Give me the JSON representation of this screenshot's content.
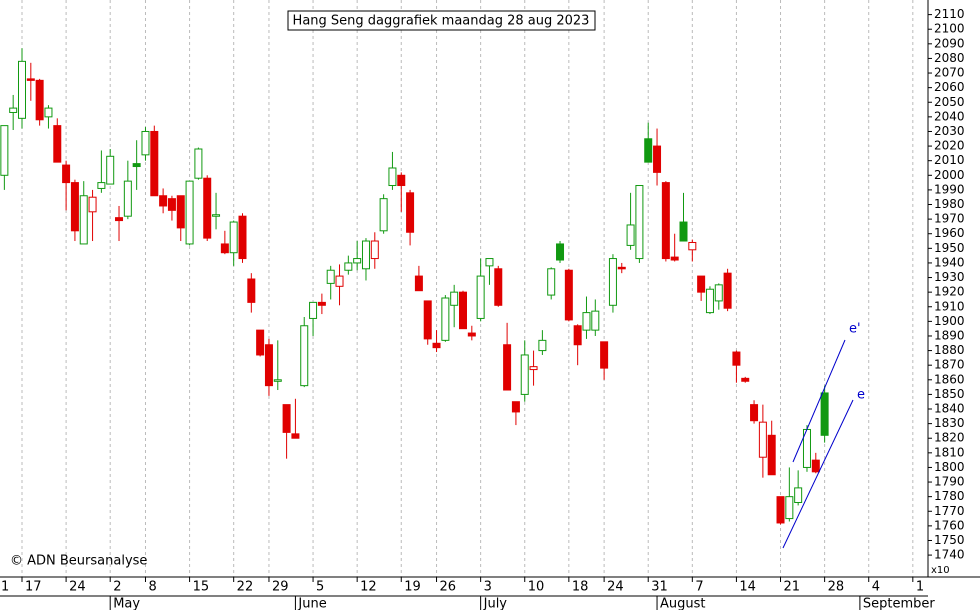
{
  "chart_data": {
    "type": "candlestick",
    "title": "Hang Seng daggrafiek maandag 28 aug 2023",
    "copyright": "© ADN Beursanalyse",
    "y_multiplier_label": "x10",
    "annotations": [
      "e'",
      "e"
    ],
    "up_color": "#119911",
    "down_color": "#e00000",
    "annotation_color": "#0000cc",
    "grid": true,
    "ylim": [
      1725,
      2120
    ],
    "yticks": [
      1740,
      1750,
      1760,
      1770,
      1780,
      1790,
      1800,
      1810,
      1820,
      1830,
      1840,
      1850,
      1860,
      1870,
      1880,
      1890,
      1900,
      1910,
      1920,
      1930,
      1940,
      1950,
      1960,
      1970,
      1980,
      1990,
      2000,
      2010,
      2020,
      2030,
      2040,
      2050,
      2060,
      2070,
      2080,
      2090,
      2100,
      2110
    ],
    "categories": [
      "1",
      null,
      null,
      null,
      "17",
      null,
      null,
      null,
      null,
      "24",
      null,
      null,
      null,
      null,
      "2",
      null,
      null,
      null,
      "8",
      null,
      null,
      null,
      null,
      "15",
      null,
      null,
      null,
      null,
      "22",
      null,
      null,
      null,
      "29",
      null,
      null,
      null,
      null,
      "5",
      null,
      null,
      null,
      null,
      "12",
      null,
      null,
      null,
      null,
      "19",
      null,
      null,
      null,
      "26",
      null,
      null,
      null,
      null,
      "3",
      null,
      null,
      null,
      null,
      "10",
      null,
      null,
      null,
      null,
      "18",
      null,
      null,
      null,
      "24",
      null,
      null,
      null,
      null,
      "31",
      null,
      null,
      null,
      null,
      "7",
      null,
      null,
      null,
      null,
      "14",
      null,
      null,
      null,
      null,
      "21",
      null,
      null,
      null,
      null,
      "28",
      null,
      null,
      null,
      null,
      "4",
      null,
      null,
      null,
      null,
      "1"
    ],
    "months": [
      null,
      null,
      null,
      null,
      null,
      null,
      null,
      null,
      null,
      null,
      null,
      null,
      null,
      null,
      "May",
      null,
      null,
      null,
      null,
      null,
      null,
      null,
      null,
      null,
      null,
      null,
      null,
      null,
      null,
      null,
      null,
      null,
      null,
      null,
      null,
      "June",
      null,
      null,
      null,
      null,
      null,
      null,
      null,
      null,
      null,
      null,
      null,
      null,
      null,
      null,
      null,
      null,
      null,
      null,
      null,
      null,
      "July",
      null,
      null,
      null,
      null,
      null,
      null,
      null,
      null,
      null,
      null,
      null,
      null,
      null,
      null,
      null,
      null,
      null,
      null,
      null,
      "August",
      null,
      null,
      null,
      null,
      null,
      null,
      null,
      null,
      null,
      null,
      null,
      null,
      null,
      null,
      null,
      null,
      null,
      null,
      null,
      null,
      null,
      null,
      "September",
      null,
      null,
      null,
      null,
      null,
      null
    ],
    "open": [
      null,
      null,
      2000,
      2043,
      2039,
      2066,
      2065,
      2040,
      2034,
      2007,
      1995,
      1953,
      1975,
      1991,
      1994,
      1971,
      1972,
      2008,
      2014,
      2030,
      1986,
      1984,
      1986,
      1953,
      1998,
      1998,
      1972,
      1953,
      1947,
      1972,
      1929,
      1894,
      1884,
      1859,
      1843,
      1823,
      1856,
      1902,
      1913,
      1926,
      1924,
      1935,
      1940,
      1936,
      1943,
      1962,
      1993,
      2000,
      1988,
      1931,
      1914,
      1885,
      1887,
      1911,
      1920,
      1892,
      1902,
      1938,
      1936,
      1884,
      1845,
      1850,
      1867,
      1880,
      1918,
      1953,
      1935,
      1897,
      1894,
      1894,
      1886,
      1911,
      1937,
      1952,
      1943,
      2025,
      2020,
      1995,
      1944,
      1968,
      1949,
      1931,
      1906,
      1914,
      1933,
      1879,
      1861,
      1843,
      1807,
      1822,
      1780,
      1765,
      1776,
      1800,
      1805,
      1851,
      null,
      null,
      null,
      null,
      null,
      null,
      null,
      null,
      null,
      null
    ],
    "high": [
      null,
      null,
      2034,
      2055,
      2087,
      2077,
      2066,
      2048,
      2039,
      2010,
      1997,
      1996,
      1990,
      2017,
      2018,
      1979,
      2010,
      2024,
      2033,
      2034,
      1991,
      1986,
      1986,
      1996,
      2019,
      2000,
      1988,
      1962,
      1969,
      1974,
      1933,
      1894,
      1888,
      1887,
      1843,
      1847,
      1903,
      1913,
      1919,
      1938,
      1939,
      1945,
      1955,
      1957,
      1961,
      1987,
      2016,
      2002,
      1990,
      1938,
      1914,
      1894,
      1918,
      1925,
      1921,
      1897,
      1943,
      1943,
      1938,
      1899,
      1845,
      1887,
      1880,
      1894,
      1937,
      1955,
      1936,
      1898,
      1917,
      1915,
      1886,
      1946,
      1940,
      1988,
      1993,
      2036,
      2032,
      1996,
      1960,
      1988,
      1956,
      1931,
      1924,
      1926,
      1936,
      1880,
      1862,
      1846,
      1843,
      1832,
      1780,
      1800,
      1798,
      1829,
      1810,
      1856,
      null,
      null,
      null,
      null,
      null,
      null,
      null,
      null,
      null,
      null
    ],
    "low": [
      null,
      null,
      1990,
      2031,
      2032,
      2051,
      2034,
      2032,
      2009,
      1976,
      1955,
      1953,
      1955,
      1988,
      1994,
      1955,
      1970,
      1990,
      2010,
      1986,
      1974,
      1969,
      1955,
      1952,
      1997,
      1955,
      1963,
      1946,
      1938,
      1940,
      1906,
      1876,
      1849,
      1853,
      1806,
      1820,
      1855,
      1890,
      1905,
      1915,
      1911,
      1932,
      1935,
      1928,
      1936,
      1960,
      1990,
      1975,
      1952,
      1921,
      1884,
      1879,
      1886,
      1896,
      1895,
      1887,
      1900,
      1925,
      1910,
      1853,
      1829,
      1845,
      1856,
      1877,
      1915,
      1940,
      1900,
      1870,
      1888,
      1890,
      1860,
      1906,
      1933,
      1949,
      1940,
      2009,
      1993,
      1941,
      1941,
      1955,
      1941,
      1914,
      1905,
      1908,
      1907,
      1858,
      1858,
      1830,
      1793,
      1795,
      1761,
      1763,
      1774,
      1797,
      1796,
      1817,
      null,
      null,
      null,
      null,
      null,
      null,
      null,
      null,
      null,
      null
    ],
    "close": [
      null,
      null,
      2034,
      2046,
      2078,
      2065,
      2038,
      2046,
      2009,
      1995,
      1962,
      1986,
      1985,
      1995,
      2013,
      1969,
      1996,
      2006,
      2030,
      1986,
      1979,
      1976,
      1964,
      1996,
      2018,
      1957,
      1973,
      1947,
      1968,
      1943,
      1913,
      1877,
      1856,
      1860,
      1824,
      1820,
      1897,
      1913,
      1911,
      1935,
      1931,
      1940,
      1943,
      1955,
      1955,
      1984,
      2005,
      1993,
      1961,
      1921,
      1888,
      1882,
      1916,
      1920,
      1895,
      1890,
      1931,
      1943,
      1911,
      1853,
      1838,
      1877,
      1869,
      1887,
      1936,
      1942,
      1901,
      1884,
      1906,
      1907,
      1868,
      1943,
      1936,
      1966,
      1993,
      2009,
      2002,
      1943,
      1942,
      1955,
      1954,
      1920,
      1922,
      1925,
      1909,
      1870,
      1859,
      1832,
      1831,
      1795,
      1762,
      1780,
      1786,
      1826,
      1797,
      1822,
      null,
      null,
      null,
      null,
      null,
      null,
      null,
      null,
      null,
      null
    ]
  }
}
